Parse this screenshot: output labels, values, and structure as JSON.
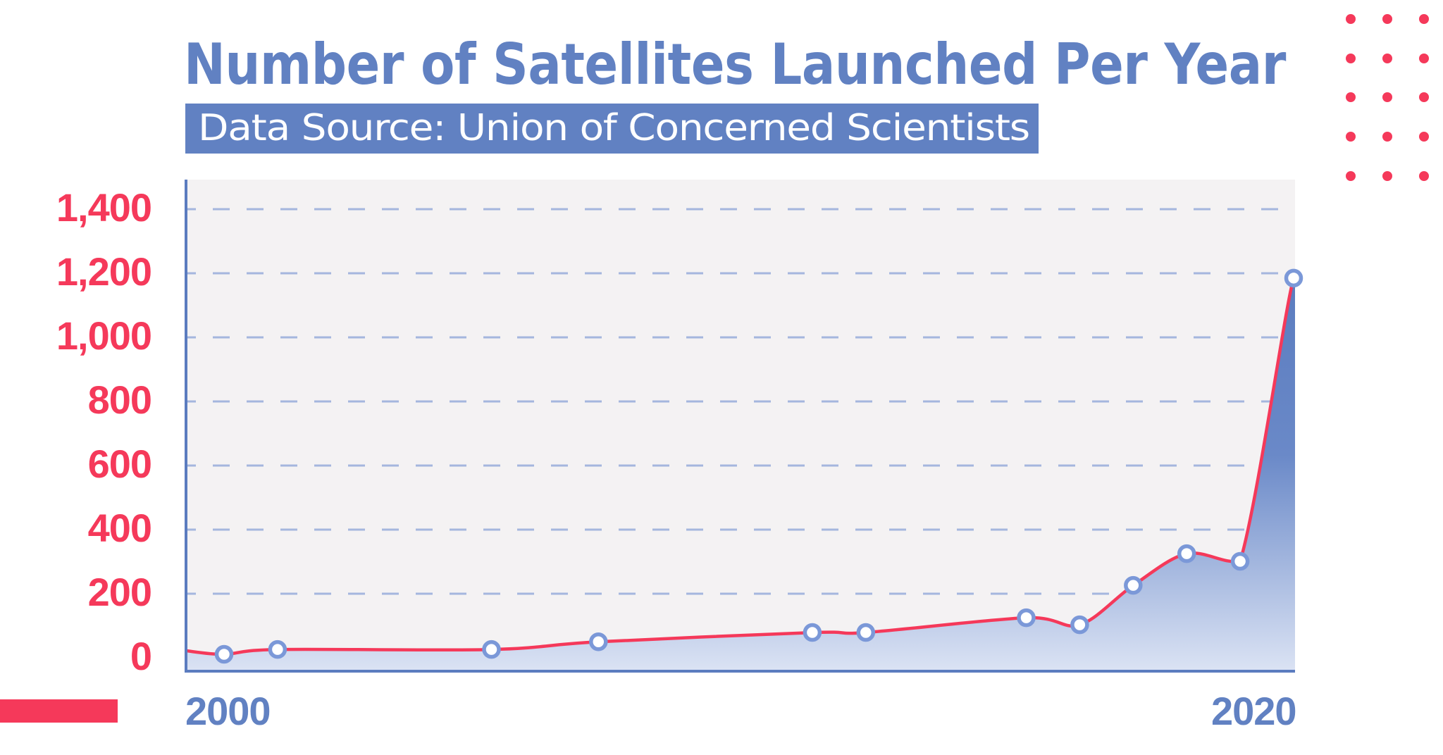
{
  "header": {
    "title": "Number of Satellites Launched Per Year",
    "subtitle": "Data Source: Union of Concerned Scientists"
  },
  "colors": {
    "accent_blue": "#6181c2",
    "accent_red": "#f5395a",
    "plot_bg": "#f4f2f3",
    "grid": "#a5b6de",
    "marker_stroke": "#7b98d8",
    "fill_top": "#5b7cbf",
    "fill_bottom": "#dbe3f4"
  },
  "axes": {
    "y_ticks": [
      {
        "label": "1,400",
        "value": 1400
      },
      {
        "label": "1,200",
        "value": 1200
      },
      {
        "label": "1,000",
        "value": 1000
      },
      {
        "label": "800",
        "value": 800
      },
      {
        "label": "600",
        "value": 600
      },
      {
        "label": "400",
        "value": 400
      },
      {
        "label": "200",
        "value": 200
      },
      {
        "label": "0",
        "value": 0
      }
    ],
    "x_start_label": "2000",
    "x_end_label": "2020"
  },
  "chart_data": {
    "type": "area",
    "title": "Number of Satellites Launched Per Year",
    "subtitle": "Data Source: Union of Concerned Scientists",
    "xlabel": "",
    "ylabel": "",
    "x_tick_labels": [
      "2000",
      "2020"
    ],
    "y_tick_labels": [
      "0",
      "200",
      "400",
      "600",
      "800",
      "1,000",
      "1,200",
      "1,400"
    ],
    "ylim": [
      0,
      1400
    ],
    "xlim": [
      2000,
      2020
    ],
    "grid": true,
    "legend": null,
    "series": [
      {
        "name": "Satellites launched",
        "points": [
          {
            "x": 2000,
            "y": 11
          },
          {
            "x": 2001,
            "y": 26
          },
          {
            "x": 2005,
            "y": 26
          },
          {
            "x": 2007,
            "y": 50
          },
          {
            "x": 2011,
            "y": 79
          },
          {
            "x": 2012,
            "y": 79
          },
          {
            "x": 2015,
            "y": 125
          },
          {
            "x": 2016,
            "y": 103
          },
          {
            "x": 2017,
            "y": 226
          },
          {
            "x": 2018,
            "y": 325
          },
          {
            "x": 2019,
            "y": 301
          },
          {
            "x": 2020,
            "y": 1185
          }
        ]
      }
    ]
  }
}
